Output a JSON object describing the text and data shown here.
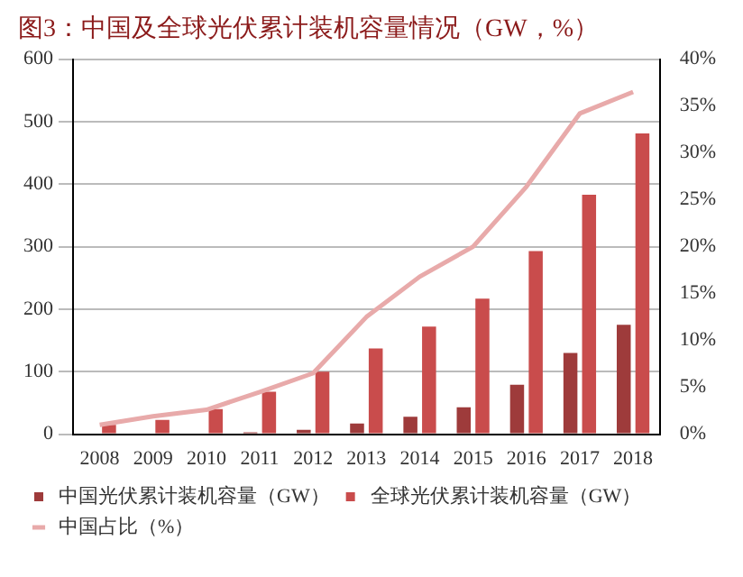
{
  "chart_data": {
    "type": "bar",
    "title": "图3：中国及全球光伏累计装机容量情况（GW，%）",
    "categories": [
      "2008",
      "2009",
      "2010",
      "2011",
      "2012",
      "2013",
      "2014",
      "2015",
      "2016",
      "2017",
      "2018"
    ],
    "series": [
      {
        "name": "中国光伏累计装机容量（GW）",
        "color": "#9e3b3b",
        "values": [
          null,
          null,
          null,
          3,
          7,
          17,
          28,
          43,
          79,
          130,
          175
        ]
      },
      {
        "name": "全球光伏累计装机容量（GW）",
        "color": "#c94c4c",
        "values": [
          15,
          23,
          40,
          68,
          100,
          137,
          172,
          217,
          293,
          383,
          481
        ]
      },
      {
        "name": "中国占比（%）",
        "type": "line",
        "axis": "y2",
        "color": "#e8aaaa",
        "values": [
          1.0,
          1.9,
          2.6,
          4.5,
          6.5,
          12.5,
          16.8,
          20,
          26.4,
          34.2,
          36.5
        ]
      }
    ],
    "ylim": [
      0,
      600
    ],
    "yticks": [
      0,
      100,
      200,
      300,
      400,
      500,
      600
    ],
    "y2lim": [
      0,
      40
    ],
    "y2ticks": [
      {
        "value": 0,
        "label": "0%"
      },
      {
        "value": 5,
        "label": "5%"
      },
      {
        "value": 10,
        "label": "10%"
      },
      {
        "value": 15,
        "label": "15%"
      },
      {
        "value": 20,
        "label": "20%"
      },
      {
        "value": 25,
        "label": "25%"
      },
      {
        "value": 30,
        "label": "30%"
      },
      {
        "value": 35,
        "label": "35%"
      },
      {
        "value": 40,
        "label": "40%"
      }
    ],
    "grid": "y",
    "legend": "bottom",
    "marker": "none"
  }
}
